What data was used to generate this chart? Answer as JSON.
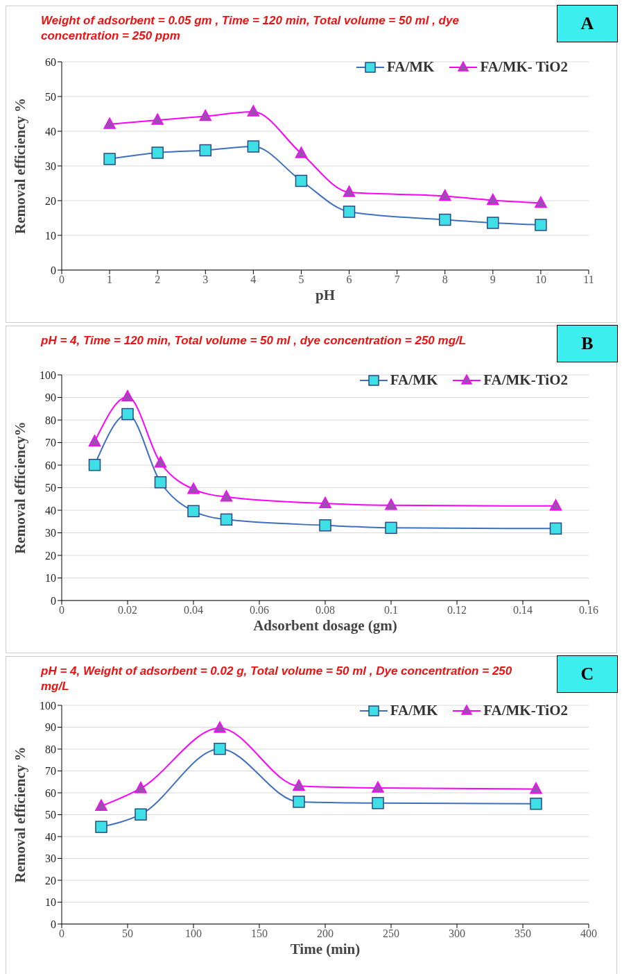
{
  "chart_data": [
    {
      "type": "line",
      "title": "Weight of adsorbent = 0.05 gm , Time = 120 min, Total volume = 50 ml , dye concentration = 250 ppm",
      "xlabel": "pH",
      "ylabel": "Removal efficiency %",
      "annotations": [
        "A"
      ],
      "x": [
        1,
        2,
        3,
        4,
        5,
        6,
        8,
        9,
        10
      ],
      "xlim": [
        0,
        11
      ],
      "xticks": [
        0,
        1,
        2,
        3,
        4,
        5,
        6,
        7,
        8,
        9,
        10,
        11
      ],
      "ylim": [
        0,
        60
      ],
      "yticks": [
        0,
        10,
        20,
        30,
        40,
        50,
        60
      ],
      "grid": "y",
      "legend": "top right",
      "line_style": "solid",
      "series": [
        {
          "name": "FA/MK",
          "color": "#3f6fc0",
          "marker": "square",
          "values": [
            32.0,
            33.8,
            34.5,
            35.6,
            25.7,
            16.8,
            14.5,
            13.6,
            13.0
          ]
        },
        {
          "name": "FA/MK- TiO2",
          "color": "#ff00ff",
          "marker": "triangle",
          "values": [
            42.0,
            43.2,
            44.3,
            45.6,
            33.6,
            22.4,
            21.3,
            20.1,
            19.3
          ]
        }
      ]
    },
    {
      "type": "line",
      "title": "pH = 4,  Time = 120 min, Total volume = 50 ml , dye concentration = 250 mg/L",
      "xlabel": "Adsorbent dosage (gm)",
      "ylabel": "Removal efficiency%",
      "annotations": [
        "B"
      ],
      "x": [
        0.01,
        0.02,
        0.03,
        0.04,
        0.05,
        0.08,
        0.1,
        0.15
      ],
      "xlim": [
        0,
        0.16
      ],
      "xticks": [
        0,
        0.02,
        0.04,
        0.06,
        0.08,
        0.1,
        0.12,
        0.14,
        0.16
      ],
      "ylim": [
        0,
        100
      ],
      "yticks": [
        0,
        10,
        20,
        30,
        40,
        50,
        60,
        70,
        80,
        90,
        100
      ],
      "grid": "y",
      "legend": "top right",
      "line_style": "solid",
      "series": [
        {
          "name": "FA/MK",
          "color": "#3f6fc0",
          "marker": "square",
          "values": [
            60.1,
            82.6,
            52.4,
            39.6,
            35.9,
            33.3,
            32.2,
            31.9
          ]
        },
        {
          "name": "FA/MK-TiO2",
          "color": "#ff00ff",
          "marker": "triangle",
          "values": [
            70.4,
            90.3,
            61.0,
            49.3,
            45.9,
            43.0,
            42.2,
            41.9
          ]
        }
      ]
    },
    {
      "type": "line",
      "title": "pH = 4,  Weight of adsorbent = 0.02 g, Total volume = 50 ml , Dye concentration = 250 mg/L",
      "xlabel": "Time (min)",
      "ylabel": "Removal efficiency %",
      "annotations": [
        "C"
      ],
      "x": [
        30,
        60,
        120,
        180,
        240,
        360
      ],
      "xlim": [
        0,
        400
      ],
      "xticks": [
        0,
        50,
        100,
        150,
        200,
        250,
        300,
        350,
        400
      ],
      "ylim": [
        0,
        100
      ],
      "yticks": [
        0,
        10,
        20,
        30,
        40,
        50,
        60,
        70,
        80,
        90,
        100
      ],
      "grid": "y",
      "legend": "top right",
      "line_style": "solid",
      "series": [
        {
          "name": "FA/MK",
          "color": "#3f6fc0",
          "marker": "square",
          "values": [
            44.4,
            50.1,
            80.1,
            55.9,
            55.3,
            55.0
          ]
        },
        {
          "name": "FA/MK-TiO2",
          "color": "#ff00ff",
          "marker": "triangle",
          "values": [
            53.9,
            62.0,
            89.6,
            63.1,
            62.2,
            61.7
          ]
        }
      ]
    }
  ]
}
